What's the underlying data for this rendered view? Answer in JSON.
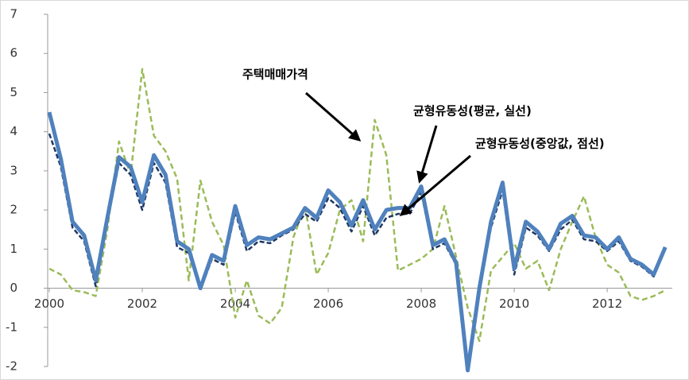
{
  "chart_data": {
    "type": "line",
    "x": [
      2000,
      2000.25,
      2000.5,
      2000.75,
      2001,
      2001.25,
      2001.5,
      2001.75,
      2002,
      2002.25,
      2002.5,
      2002.75,
      2003,
      2003.25,
      2003.5,
      2003.75,
      2004,
      2004.25,
      2004.5,
      2004.75,
      2005,
      2005.25,
      2005.5,
      2005.75,
      2006,
      2006.25,
      2006.5,
      2006.75,
      2007,
      2007.25,
      2007.5,
      2007.75,
      2008,
      2008.25,
      2008.5,
      2008.75,
      2009,
      2009.25,
      2009.5,
      2009.75,
      2010,
      2010.25,
      2010.5,
      2010.75,
      2011,
      2011.25,
      2011.5,
      2011.75,
      2012,
      2012.25,
      2012.5,
      2012.75,
      2013,
      2013.25
    ],
    "series": [
      {
        "name": "균형유동성(평균, 실선)",
        "color": "#4f81bd",
        "values": [
          4.5,
          3.3,
          1.7,
          1.35,
          0.2,
          1.8,
          3.35,
          3.1,
          2.2,
          3.4,
          2.9,
          1.2,
          1.0,
          0.0,
          0.85,
          0.7,
          2.1,
          1.1,
          1.3,
          1.25,
          1.4,
          1.55,
          2.05,
          1.8,
          2.5,
          2.2,
          1.6,
          2.25,
          1.5,
          2.0,
          2.05,
          2.05,
          2.6,
          1.1,
          1.25,
          0.65,
          -2.1,
          0.0,
          1.7,
          2.7,
          0.5,
          1.7,
          1.45,
          1.0,
          1.65,
          1.85,
          1.35,
          1.3,
          1.0,
          1.3,
          0.75,
          0.6,
          0.35,
          1.05
        ]
      },
      {
        "name": "균형유동성(중앙값, 점선)",
        "color": "#1f3864",
        "values": [
          3.95,
          3.1,
          1.55,
          1.2,
          0.05,
          1.7,
          3.2,
          2.9,
          2.0,
          3.2,
          2.7,
          1.05,
          0.9,
          -0.05,
          0.75,
          0.6,
          1.95,
          0.95,
          1.2,
          1.15,
          1.35,
          1.5,
          1.9,
          1.7,
          2.3,
          2.05,
          1.45,
          2.1,
          1.35,
          1.8,
          1.9,
          1.9,
          2.45,
          1.0,
          1.15,
          0.6,
          -2.1,
          -0.1,
          1.55,
          2.5,
          0.35,
          1.55,
          1.35,
          0.95,
          1.5,
          1.75,
          1.25,
          1.2,
          0.95,
          1.2,
          0.7,
          0.55,
          0.3,
          1.0
        ]
      },
      {
        "name": "주택매매가격",
        "color": "#9bbb59",
        "values": [
          0.5,
          0.35,
          -0.05,
          -0.1,
          -0.2,
          1.5,
          3.75,
          2.9,
          5.6,
          3.9,
          3.5,
          2.8,
          0.2,
          2.75,
          1.7,
          1.1,
          -0.75,
          0.2,
          -0.7,
          -0.9,
          -0.5,
          1.3,
          2.1,
          0.35,
          0.9,
          2.0,
          2.25,
          1.2,
          4.3,
          3.4,
          0.45,
          0.6,
          0.75,
          1.0,
          2.1,
          0.8,
          -0.5,
          -1.35,
          0.45,
          0.8,
          1.15,
          0.5,
          0.7,
          -0.05,
          1.0,
          1.7,
          2.35,
          1.3,
          0.6,
          0.4,
          -0.2,
          -0.3,
          -0.2,
          -0.05
        ]
      }
    ],
    "xlim": [
      2000,
      2013.4
    ],
    "xticks": [
      2000,
      2002,
      2004,
      2006,
      2008,
      2010,
      2012
    ],
    "ylim": [
      -2,
      7
    ],
    "yticks": [
      -2,
      -1,
      0,
      1,
      2,
      3,
      4,
      5,
      6,
      7
    ]
  }
}
